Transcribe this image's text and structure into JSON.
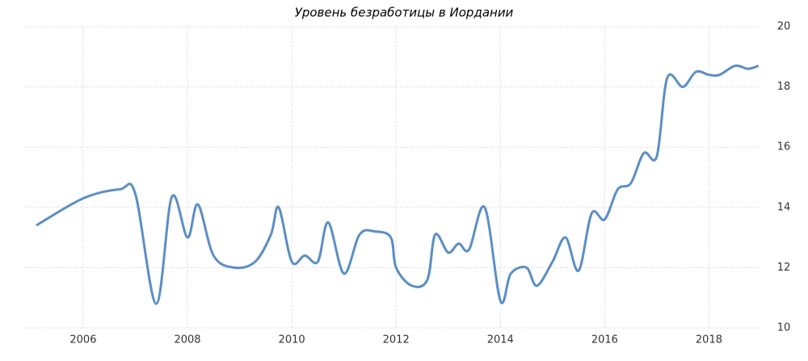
{
  "chart_data": {
    "type": "line",
    "title": "Уровень безработицы в Иордании",
    "x": [
      2005.1,
      2006.0,
      2006.7,
      2007.0,
      2007.4,
      2007.7,
      2008.0,
      2008.2,
      2008.5,
      2008.9,
      2009.3,
      2009.6,
      2009.75,
      2010.0,
      2010.25,
      2010.5,
      2010.7,
      2011.0,
      2011.3,
      2011.6,
      2011.9,
      2012.0,
      2012.3,
      2012.6,
      2012.75,
      2013.0,
      2013.2,
      2013.4,
      2013.7,
      2014.0,
      2014.2,
      2014.5,
      2014.7,
      2015.0,
      2015.25,
      2015.5,
      2015.75,
      2016.0,
      2016.25,
      2016.5,
      2016.75,
      2017.0,
      2017.2,
      2017.5,
      2017.75,
      2018.0,
      2018.2,
      2018.5,
      2018.75,
      2018.95
    ],
    "series": [
      {
        "color": "#5b8fc4",
        "values": [
          13.4,
          14.3,
          14.6,
          14.45,
          10.8,
          14.35,
          13.0,
          14.1,
          12.4,
          12.0,
          12.2,
          13.1,
          14.0,
          12.2,
          12.4,
          12.2,
          13.5,
          11.8,
          13.1,
          13.2,
          13.0,
          12.0,
          11.4,
          11.6,
          13.1,
          12.5,
          12.8,
          12.6,
          14.0,
          10.9,
          11.8,
          12.0,
          11.4,
          12.2,
          13.0,
          11.9,
          13.8,
          13.6,
          14.6,
          14.8,
          15.8,
          15.7,
          18.3,
          18.0,
          18.5,
          18.4,
          18.4,
          18.7,
          18.6,
          18.7
        ]
      }
    ],
    "xlim": [
      2004.87,
      2019.0
    ],
    "xticks": [
      2006,
      2008,
      2010,
      2012,
      2014,
      2016,
      2018
    ],
    "ylim": [
      10,
      20
    ],
    "yticks": [
      10,
      12,
      14,
      16,
      18,
      20
    ],
    "grid": true
  }
}
